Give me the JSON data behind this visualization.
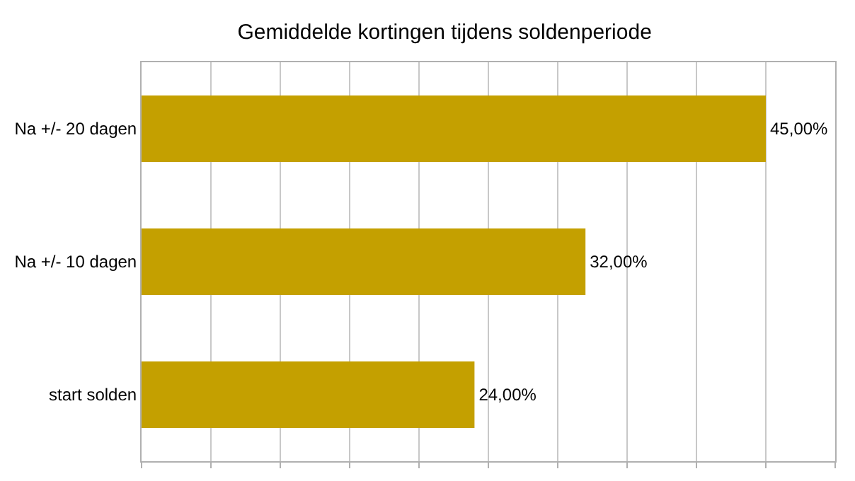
{
  "chart_data": {
    "type": "bar",
    "orientation": "horizontal",
    "title": "Gemiddelde kortingen tijdens soldenperiode",
    "categories": [
      "Na +/- 20 dagen",
      "Na +/- 10 dagen",
      "start solden"
    ],
    "values": [
      45,
      32,
      24
    ],
    "value_labels": [
      "45,00%",
      "32,00%",
      "24,00%"
    ],
    "color": "#c4a000",
    "xlim": [
      0,
      50
    ],
    "xticks": [
      {
        "value": 0,
        "label": null
      },
      {
        "value": 5,
        "label": null
      },
      {
        "value": 10,
        "label": null
      },
      {
        "value": 15,
        "label": null
      },
      {
        "value": 20,
        "label": null
      },
      {
        "value": 25,
        "label": null
      },
      {
        "value": 30,
        "label": null
      },
      {
        "value": 35,
        "label": null
      },
      {
        "value": 40,
        "label": null
      },
      {
        "value": 45,
        "label": null
      },
      {
        "value": 50,
        "label": null
      }
    ],
    "grid": "x",
    "tick_labels": "y"
  }
}
